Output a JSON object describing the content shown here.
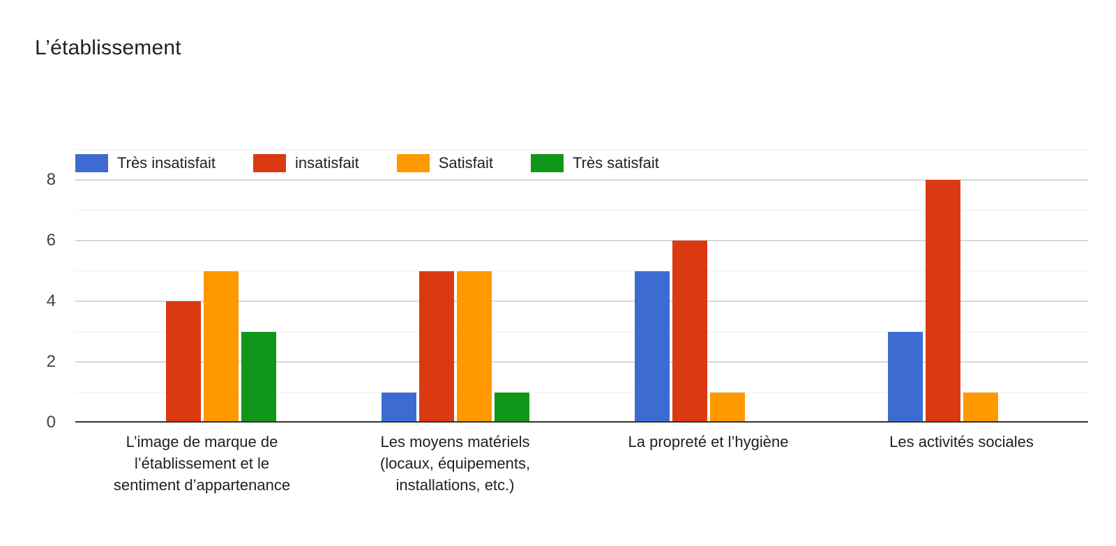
{
  "chart_data": {
    "type": "bar",
    "title": "L’établissement",
    "categories": [
      "L’image de marque de\nl’établissement et le\nsentiment d’appartenance",
      "Les moyens matériels\n(locaux, équipements,\ninstallations, etc.)",
      "La propreté et l’hygiène",
      "Les activités sociales"
    ],
    "series": [
      {
        "name": "Très insatisfait",
        "color": "#3C6CD2",
        "values": [
          0,
          1,
          5,
          3
        ]
      },
      {
        "name": "insatisfait",
        "color": "#DB3912",
        "values": [
          4,
          5,
          6,
          8
        ]
      },
      {
        "name": "Satisfait",
        "color": "#FF9900",
        "values": [
          5,
          5,
          1,
          1
        ]
      },
      {
        "name": "Très satisfait",
        "color": "#109618",
        "values": [
          3,
          1,
          0,
          0
        ]
      }
    ],
    "y_ticks": [
      0,
      2,
      4,
      6,
      8
    ],
    "ylim": [
      0,
      9
    ],
    "grid": "major-at-even-minor-at-odd",
    "legend_position": "top-left",
    "axis_color": "#333333",
    "background": "#FFFFFF"
  }
}
